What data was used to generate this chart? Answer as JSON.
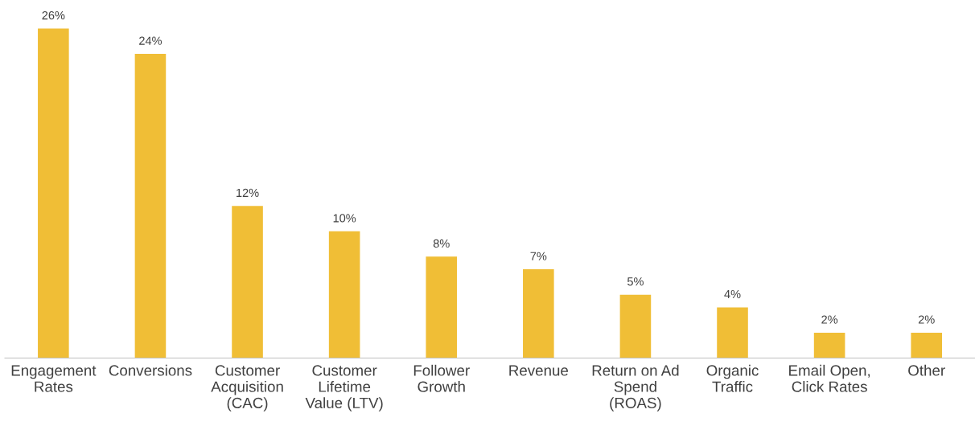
{
  "chart_data": {
    "type": "bar",
    "categories": [
      "Engagement\nRates",
      "Conversions",
      "Customer\nAcquisition\n(CAC)",
      "Customer\nLifetime\nValue (LTV)",
      "Follower\nGrowth",
      "Revenue",
      "Return on Ad\nSpend\n(ROAS)",
      "Organic\nTraffic",
      "Email Open,\nClick Rates",
      "Other"
    ],
    "values": [
      26,
      24,
      12,
      10,
      8,
      7,
      5,
      4,
      2,
      2
    ],
    "value_labels": [
      "26%",
      "24%",
      "12%",
      "10%",
      "8%",
      "7%",
      "5%",
      "4%",
      "2%",
      "2%"
    ],
    "color": "#f0be36"
  }
}
